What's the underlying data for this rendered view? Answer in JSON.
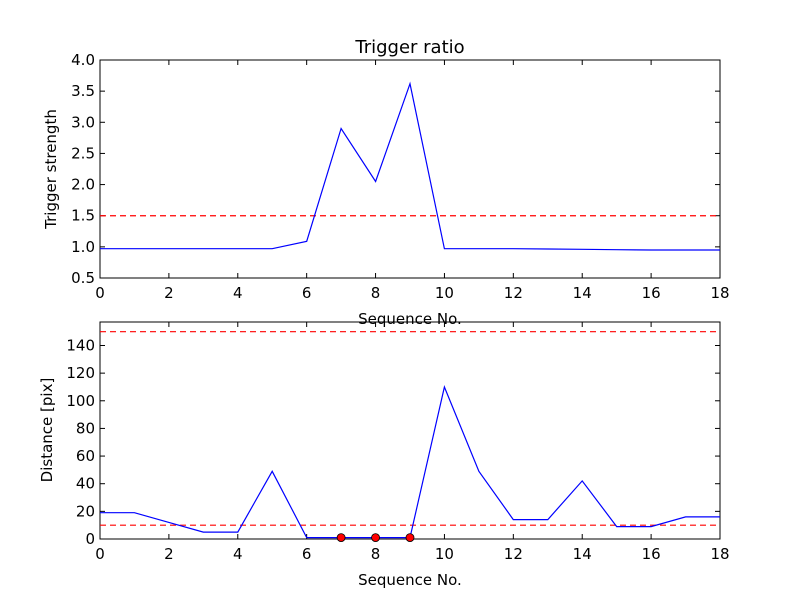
{
  "chart_data": [
    {
      "type": "line",
      "title": "Trigger ratio",
      "xlabel": "Sequence No.",
      "ylabel": "Trigger strength",
      "xlim": [
        0,
        18
      ],
      "ylim": [
        0.5,
        4.0
      ],
      "x_ticks": [
        "0",
        "2",
        "4",
        "6",
        "8",
        "10",
        "12",
        "14",
        "16",
        "18"
      ],
      "y_ticks": [
        "0.5",
        "1.0",
        "1.5",
        "2.0",
        "2.5",
        "3.0",
        "3.5",
        "4.0"
      ],
      "grid": false,
      "series": [
        {
          "color": "#0000ff",
          "style": "solid",
          "x": [
            0,
            1,
            2,
            3,
            4,
            5,
            6,
            7,
            8,
            9,
            10,
            11,
            12,
            13,
            14,
            15,
            16,
            17,
            18
          ],
          "y": [
            0.97,
            0.97,
            0.97,
            0.97,
            0.97,
            0.97,
            1.09,
            2.9,
            2.05,
            3.62,
            0.97,
            0.97,
            0.97,
            0.965,
            0.96,
            0.955,
            0.95,
            0.95,
            0.95
          ]
        }
      ],
      "threshold_lines": [
        {
          "y": 1.5,
          "color": "#ff0000",
          "style": "dashed"
        }
      ]
    },
    {
      "type": "line",
      "title": "",
      "xlabel": "Sequence No.",
      "ylabel": "Distance [pix]",
      "xlim": [
        0,
        18
      ],
      "ylim": [
        0,
        157
      ],
      "x_ticks": [
        "0",
        "2",
        "4",
        "6",
        "8",
        "10",
        "12",
        "14",
        "16",
        "18"
      ],
      "y_ticks": [
        "0",
        "20",
        "40",
        "60",
        "80",
        "100",
        "120",
        "140"
      ],
      "grid": false,
      "series": [
        {
          "color": "#0000ff",
          "style": "solid",
          "x": [
            0,
            1,
            2,
            3,
            4,
            5,
            6,
            7,
            8,
            9,
            10,
            11,
            12,
            13,
            14,
            15,
            16,
            17,
            18
          ],
          "y": [
            19,
            19,
            12,
            5,
            5,
            49,
            1,
            1,
            1,
            1,
            110,
            49,
            14,
            14,
            42,
            9,
            9,
            16,
            16
          ]
        }
      ],
      "markers": {
        "color": "#ff0000",
        "x": [
          7,
          8,
          9
        ],
        "y": [
          1,
          1,
          1
        ]
      },
      "threshold_lines": [
        {
          "y": 150,
          "color": "#ff0000",
          "style": "dashed"
        },
        {
          "y": 10,
          "color": "#ff0000",
          "style": "dashed"
        }
      ]
    }
  ]
}
